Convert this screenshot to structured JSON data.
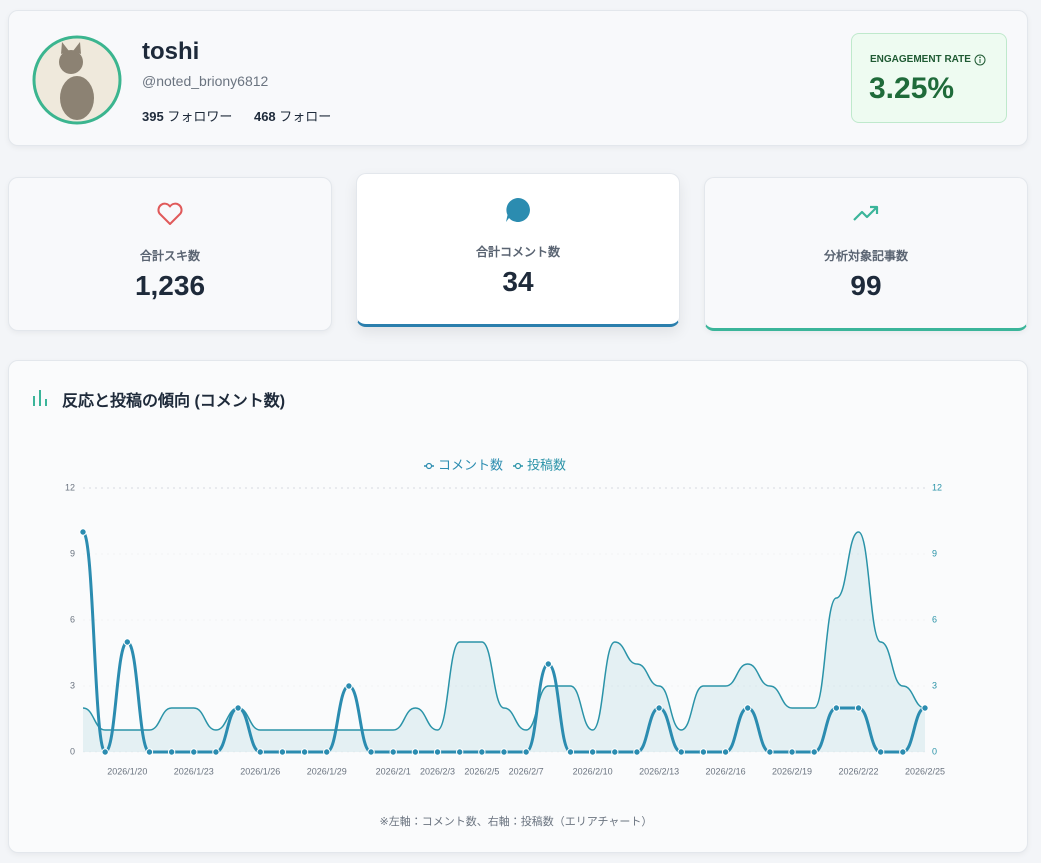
{
  "profile": {
    "name": "toshi",
    "handle": "@noted_briony6812",
    "followers": {
      "count": "395",
      "label": "フォロワー"
    },
    "following": {
      "count": "468",
      "label": "フォロー"
    },
    "engagement": {
      "label": "ENGAGEMENT RATE",
      "value": "3.25%"
    }
  },
  "stats": [
    {
      "label": "合計スキ数",
      "value": "1,236"
    },
    {
      "label": "合計コメント数",
      "value": "34"
    },
    {
      "label": "分析対象記事数",
      "value": "99"
    }
  ],
  "chart_title": "反応と投稿の傾向 (コメント数)",
  "chart_data": {
    "type": "line",
    "categories": [
      null,
      null,
      "2026/1/20",
      null,
      null,
      "2026/1/23",
      null,
      null,
      "2026/1/26",
      null,
      null,
      "2026/1/29",
      null,
      null,
      "2026/2/1",
      null,
      "2026/2/3",
      null,
      "2026/2/5",
      null,
      "2026/2/7",
      null,
      null,
      "2026/2/10",
      null,
      null,
      "2026/2/13",
      null,
      null,
      "2026/2/16",
      null,
      null,
      "2026/2/19",
      null,
      null,
      "2026/2/22",
      null,
      null,
      "2026/2/25"
    ],
    "series": [
      {
        "name": "コメント数",
        "color": "#2b8cb0",
        "axis": "y",
        "values": [
          10,
          0,
          5,
          0,
          0,
          0,
          0,
          2,
          0,
          0,
          0,
          0,
          3,
          0,
          0,
          0,
          0,
          0,
          0,
          0,
          0,
          4,
          0,
          0,
          0,
          0,
          2,
          0,
          0,
          0,
          2,
          0,
          0,
          0,
          2,
          2,
          0,
          0,
          2
        ]
      },
      {
        "name": "投稿数",
        "color": "#2a93a8",
        "axis": "y2",
        "values": [
          2,
          1,
          1,
          1,
          2,
          2,
          1,
          2,
          1,
          1,
          1,
          1,
          1,
          1,
          1,
          2,
          1,
          5,
          5,
          2,
          1,
          3,
          3,
          1,
          5,
          4,
          3,
          1,
          3,
          3,
          4,
          3,
          2,
          2,
          7,
          10,
          5,
          3,
          2
        ]
      }
    ],
    "ylim": [
      0,
      12
    ],
    "yticks": [
      0,
      3,
      6,
      9,
      12
    ],
    "y2lim": [
      0,
      12
    ],
    "y2ticks": [
      0,
      3,
      6,
      9,
      12
    ],
    "grid": true,
    "note": "※左軸：コメント数、右軸：投稿数（エリアチャート）"
  }
}
